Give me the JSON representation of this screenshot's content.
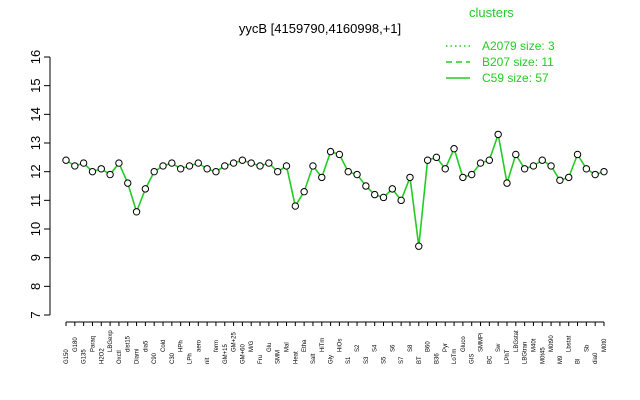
{
  "chart_data": {
    "type": "line",
    "title": "yycB [4159790,4160998,+1]",
    "xlabel": "",
    "ylabel": "",
    "ylim": [
      7,
      16
    ],
    "yticks": [
      7,
      8,
      9,
      10,
      11,
      12,
      13,
      14,
      15,
      16
    ],
    "grid": false,
    "legend": {
      "title": "clusters",
      "placement": "top-right",
      "entries": [
        {
          "label": "A2079 size: 3",
          "style": "dotted"
        },
        {
          "label": "B207 size: 11",
          "style": "dashed"
        },
        {
          "label": "C59 size: 57",
          "style": "solid"
        }
      ]
    },
    "line_color": "#22cc22",
    "x_tick_labels": [
      "G150",
      "G180",
      "G135",
      "Paraq",
      "H2O2",
      "LBGexp",
      "Oxctl",
      "dist15",
      "Diami",
      "dia5",
      "C90",
      "Cold",
      "C30",
      "HPh",
      "LPh",
      "aero",
      "nit",
      "ferm",
      "GM+15",
      "GM+25",
      "GM+60",
      "M/G",
      "Fru",
      "Glu",
      "SMM",
      "Mal",
      "Heat",
      "Etha",
      "Salt",
      "HiTm",
      "Gly",
      "HiOs",
      "S1",
      "S2",
      "S3",
      "S4",
      "S5",
      "S6",
      "S7",
      "S8",
      "BT",
      "B60",
      "B36",
      "Pyr",
      "LoTm",
      "Gluco",
      "GIS",
      "SMMPi",
      "BC",
      "Sw",
      "LPhT",
      "LBGstat",
      "LBGtran",
      "M40t",
      "M0t45",
      "M0t90",
      "M9",
      "Lbstat",
      "Bl",
      "Sb",
      "dia0",
      "M0t0"
    ],
    "series": [
      {
        "values": [
          12.4,
          12.2,
          12.3,
          12.0,
          12.1,
          11.9,
          12.3,
          11.6,
          10.6,
          11.4,
          12.0,
          12.2,
          12.3,
          12.1,
          12.2,
          12.3,
          12.1,
          12.0,
          12.2,
          12.3,
          12.4,
          12.3,
          12.2,
          12.3,
          12.0,
          12.2,
          10.8,
          11.3,
          12.2,
          11.8,
          12.7,
          12.6,
          12.0,
          11.9,
          11.5,
          11.2,
          11.1,
          11.4,
          11.0,
          11.8,
          9.4,
          12.4,
          12.5,
          12.1,
          12.8,
          11.8,
          11.9,
          12.3,
          12.4,
          13.3,
          11.6,
          12.6,
          12.1,
          12.2,
          12.4,
          12.2,
          11.7,
          11.8,
          12.6,
          12.1,
          11.9,
          12.0
        ]
      }
    ]
  }
}
